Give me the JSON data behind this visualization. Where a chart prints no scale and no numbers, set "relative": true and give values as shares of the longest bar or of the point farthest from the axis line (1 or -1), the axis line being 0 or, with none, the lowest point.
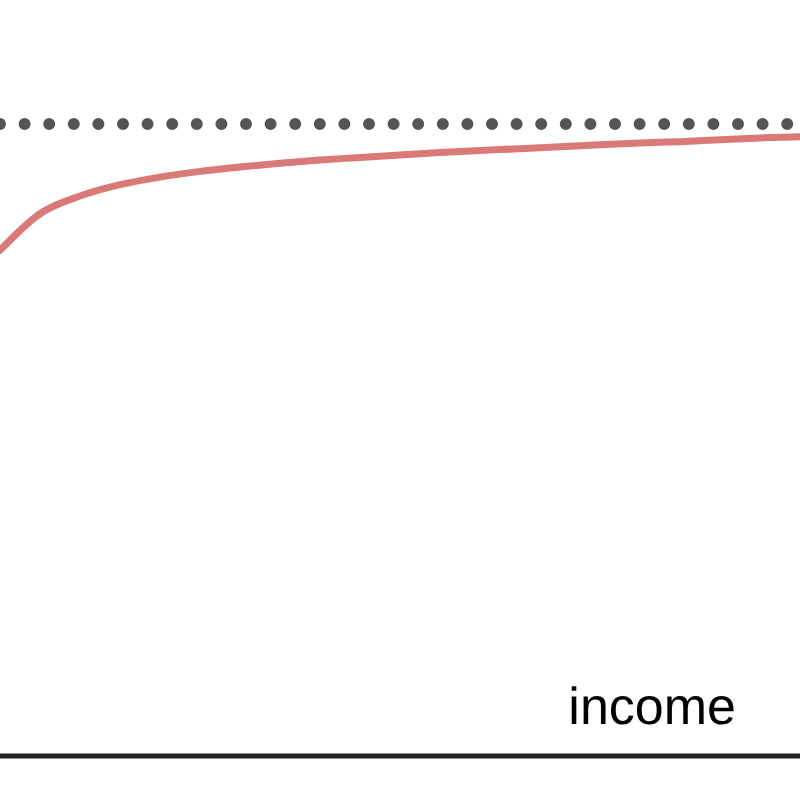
{
  "chart_data": {
    "type": "line",
    "relative": true,
    "xlabel": "income",
    "categories": [
      null,
      null,
      null,
      null,
      null,
      null,
      null,
      null,
      null,
      null,
      null,
      null,
      null,
      null,
      null,
      null,
      null,
      null,
      null,
      null,
      null
    ],
    "series": [
      {
        "color": "#d97a78",
        "line_style": "solid",
        "values": [
          0.8,
          0.858,
          0.886,
          0.904,
          0.916,
          0.925,
          0.932,
          0.938,
          0.943,
          0.947,
          0.951,
          0.955,
          0.958,
          0.961,
          0.964,
          0.967,
          0.97,
          0.972,
          0.975,
          0.978,
          0.98
        ]
      },
      {
        "color": "#555555",
        "line_style": "dotted",
        "values": [
          1,
          1,
          1,
          1,
          1,
          1,
          1,
          1,
          1,
          1,
          1,
          1,
          1,
          1,
          1,
          1,
          1,
          1,
          1,
          1,
          1
        ]
      }
    ]
  }
}
